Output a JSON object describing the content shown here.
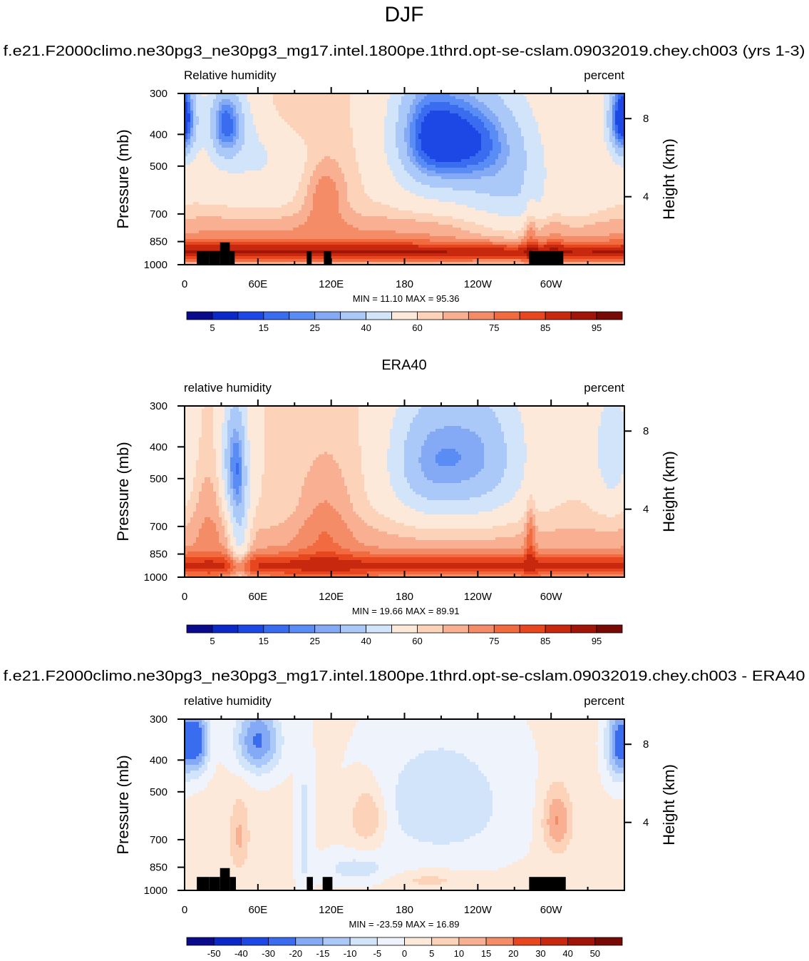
{
  "page": {
    "season_title": "DJF",
    "model_title": "f.e21.F2000climo.ne30pg3_ne30pg3_mg17.intel.1800pe.1thrd.opt-se-cslam.09032019.chey.ch003 (yrs 1-3)",
    "obs_title": "ERA40",
    "diff_title": "f.e21.F2000climo.ne30pg3_ne30pg3_mg17.intel.1800pe.1thrd.opt-se-cslam.09032019.chey.ch003 - ERA40"
  },
  "chart_data": [
    {
      "type": "heatmap",
      "panel": "model",
      "left_label": "Relative humidity",
      "right_label": "percent",
      "ylabel": "Pressure (mb)",
      "y2label": "Height (km)",
      "x_ticks": [
        "0",
        "60E",
        "120E",
        "180",
        "120W",
        "60W"
      ],
      "x_tick_values": [
        0,
        60,
        120,
        180,
        240,
        300
      ],
      "xlim": [
        0,
        360
      ],
      "y_ticks": [
        "300",
        "400",
        "500",
        "700",
        "850",
        "1000"
      ],
      "y_tick_values": [
        300,
        400,
        500,
        700,
        850,
        1000
      ],
      "ylim": [
        1000,
        300
      ],
      "y2_ticks": [
        "8",
        "4"
      ],
      "y2_tick_values": [
        8,
        4
      ],
      "min_label": "MIN =  11.10",
      "max_label": "MAX =  95.36",
      "colorbar_levels": [
        5,
        10,
        15,
        20,
        25,
        30,
        40,
        50,
        60,
        65,
        70,
        75,
        80,
        85,
        90,
        95
      ],
      "colorbar_labels": [
        "5",
        "15",
        "25",
        "40",
        "60",
        "75",
        "85",
        "95"
      ],
      "colorbar_colors": [
        "#0a0a8c",
        "#0b28c8",
        "#1e48e6",
        "#3a6cf0",
        "#5a8cf5",
        "#84aaf5",
        "#aac8f8",
        "#d2e4fa",
        "#fde9d9",
        "#fcd3b8",
        "#f9b092",
        "#f48c68",
        "#f16a40",
        "#e8461e",
        "#c8280e",
        "#a01508",
        "#780a05"
      ],
      "field_profile": "model",
      "topography": [
        [
          10,
          20,
          910
        ],
        [
          20,
          29,
          910
        ],
        [
          29,
          37,
          855
        ],
        [
          37,
          41,
          910
        ],
        [
          100,
          104,
          910
        ],
        [
          114,
          120,
          910
        ],
        [
          282,
          310,
          910
        ]
      ]
    },
    {
      "type": "heatmap",
      "panel": "obs",
      "left_label": "relative humidity",
      "right_label": "percent",
      "ylabel": "Pressure (mb)",
      "y2label": "Height (km)",
      "x_ticks": [
        "0",
        "60E",
        "120E",
        "180",
        "120W",
        "60W"
      ],
      "x_tick_values": [
        0,
        60,
        120,
        180,
        240,
        300
      ],
      "xlim": [
        0,
        360
      ],
      "y_ticks": [
        "300",
        "400",
        "500",
        "700",
        "850",
        "1000"
      ],
      "y_tick_values": [
        300,
        400,
        500,
        700,
        850,
        1000
      ],
      "ylim": [
        1000,
        300
      ],
      "y2_ticks": [
        "8",
        "4"
      ],
      "y2_tick_values": [
        8,
        4
      ],
      "min_label": "MIN =  19.66",
      "max_label": "MAX =  89.91",
      "colorbar_levels": [
        5,
        10,
        15,
        20,
        25,
        30,
        40,
        50,
        60,
        65,
        70,
        75,
        80,
        85,
        90,
        95
      ],
      "colorbar_labels": [
        "5",
        "15",
        "25",
        "40",
        "60",
        "75",
        "85",
        "95"
      ],
      "colorbar_colors": [
        "#0a0a8c",
        "#0b28c8",
        "#1e48e6",
        "#3a6cf0",
        "#5a8cf5",
        "#84aaf5",
        "#aac8f8",
        "#d2e4fa",
        "#fde9d9",
        "#fcd3b8",
        "#f9b092",
        "#f48c68",
        "#f16a40",
        "#e8461e",
        "#c8280e",
        "#a01508",
        "#780a05"
      ],
      "field_profile": "obs",
      "topography": []
    },
    {
      "type": "heatmap",
      "panel": "difference",
      "left_label": "relative humidity",
      "right_label": "percent",
      "ylabel": "Pressure (mb)",
      "y2label": "Height (km)",
      "x_ticks": [
        "0",
        "60E",
        "120E",
        "180",
        "120W",
        "60W"
      ],
      "x_tick_values": [
        0,
        60,
        120,
        180,
        240,
        300
      ],
      "xlim": [
        0,
        360
      ],
      "y_ticks": [
        "300",
        "400",
        "500",
        "700",
        "850",
        "1000"
      ],
      "y_tick_values": [
        300,
        400,
        500,
        700,
        850,
        1000
      ],
      "ylim": [
        1000,
        300
      ],
      "y2_ticks": [
        "8",
        "4"
      ],
      "y2_tick_values": [
        8,
        4
      ],
      "min_label": "MIN = -23.59",
      "max_label": "MAX =  16.89",
      "colorbar_levels": [
        -50,
        -40,
        -30,
        -20,
        -15,
        -10,
        -5,
        0,
        5,
        10,
        15,
        20,
        30,
        40,
        50
      ],
      "colorbar_labels": [
        "-50",
        "-40",
        "-30",
        "-20",
        "-15",
        "-10",
        "-5",
        "0",
        "5",
        "10",
        "15",
        "20",
        "30",
        "40",
        "50"
      ],
      "colorbar_colors": [
        "#0a0a8c",
        "#0b28c8",
        "#1e48e6",
        "#3a6cf0",
        "#84aaf5",
        "#aac8f8",
        "#d2e4fa",
        "#eef3fc",
        "#fde9d9",
        "#fcd3b8",
        "#f9b092",
        "#f48c68",
        "#e8461e",
        "#c8280e",
        "#a01508",
        "#780a05"
      ],
      "field_profile": "diff",
      "topography": [
        [
          10,
          20,
          910
        ],
        [
          20,
          29,
          910
        ],
        [
          29,
          37,
          855
        ],
        [
          37,
          42,
          910
        ],
        [
          100,
          105,
          910
        ],
        [
          113,
          121,
          910
        ],
        [
          282,
          312,
          910
        ]
      ]
    }
  ]
}
